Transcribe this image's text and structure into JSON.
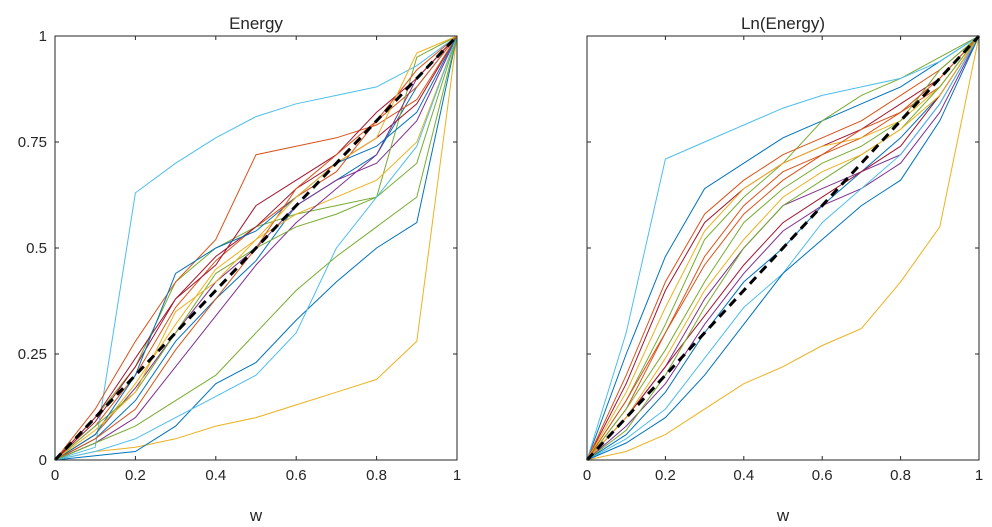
{
  "chart_data": [
    {
      "type": "line",
      "title": "Energy",
      "xlabel": "w",
      "ylabel": "",
      "xlim": [
        0,
        1
      ],
      "ylim": [
        0,
        1
      ],
      "xticks": [
        "0",
        "0.2",
        "0.4",
        "0.6",
        "0.8",
        "1"
      ],
      "yticks": [
        "0",
        "0.25",
        "0.5",
        "0.75",
        "1"
      ],
      "grid": false,
      "series": [
        {
          "color": "#0072BD",
          "x": [
            0,
            0.1,
            0.2,
            0.3,
            0.4,
            0.5,
            0.6,
            0.7,
            0.8,
            0.9,
            1
          ],
          "y": [
            0,
            0.05,
            0.14,
            0.28,
            0.38,
            0.47,
            0.6,
            0.66,
            0.72,
            0.88,
            1
          ]
        },
        {
          "color": "#D95319",
          "x": [
            0,
            0.1,
            0.2,
            0.3,
            0.4,
            0.5,
            0.6,
            0.7,
            0.8,
            0.9,
            1
          ],
          "y": [
            0,
            0.08,
            0.2,
            0.36,
            0.47,
            0.55,
            0.62,
            0.68,
            0.8,
            0.88,
            1
          ]
        },
        {
          "color": "#EDB120",
          "x": [
            0,
            0.1,
            0.2,
            0.3,
            0.4,
            0.5,
            0.6,
            0.7,
            0.8,
            0.9,
            1
          ],
          "y": [
            0,
            0.02,
            0.03,
            0.05,
            0.08,
            0.1,
            0.13,
            0.16,
            0.19,
            0.28,
            1
          ]
        },
        {
          "color": "#7E2F8E",
          "x": [
            0,
            0.1,
            0.2,
            0.3,
            0.4,
            0.5,
            0.6,
            0.7,
            0.8,
            0.9,
            1
          ],
          "y": [
            0,
            0.06,
            0.17,
            0.3,
            0.42,
            0.5,
            0.6,
            0.66,
            0.7,
            0.8,
            1
          ]
        },
        {
          "color": "#77AC30",
          "x": [
            0,
            0.1,
            0.2,
            0.3,
            0.4,
            0.5,
            0.6,
            0.7,
            0.8,
            0.9,
            1
          ],
          "y": [
            0,
            0.1,
            0.22,
            0.42,
            0.5,
            0.55,
            0.58,
            0.6,
            0.62,
            0.95,
            1
          ]
        },
        {
          "color": "#4DBEEE",
          "x": [
            0,
            0.1,
            0.2,
            0.3,
            0.4,
            0.5,
            0.6,
            0.7,
            0.8,
            0.9,
            1
          ],
          "y": [
            0,
            0.03,
            0.63,
            0.7,
            0.76,
            0.81,
            0.84,
            0.86,
            0.88,
            0.93,
            1
          ]
        },
        {
          "color": "#A2142F",
          "x": [
            0,
            0.1,
            0.2,
            0.3,
            0.4,
            0.5,
            0.6,
            0.7,
            0.8,
            0.9,
            1
          ],
          "y": [
            0,
            0.1,
            0.24,
            0.38,
            0.48,
            0.55,
            0.64,
            0.7,
            0.76,
            0.84,
            1
          ]
        },
        {
          "color": "#0072BD",
          "x": [
            0,
            0.1,
            0.2,
            0.3,
            0.4,
            0.5,
            0.6,
            0.7,
            0.8,
            0.9,
            1
          ],
          "y": [
            0,
            0.01,
            0.02,
            0.08,
            0.18,
            0.23,
            0.33,
            0.42,
            0.5,
            0.56,
            1
          ]
        },
        {
          "color": "#D95319",
          "x": [
            0,
            0.1,
            0.2,
            0.3,
            0.4,
            0.5,
            0.6,
            0.7,
            0.8,
            0.9,
            1
          ],
          "y": [
            0,
            0.12,
            0.28,
            0.42,
            0.52,
            0.72,
            0.74,
            0.76,
            0.79,
            0.85,
            1
          ]
        },
        {
          "color": "#EDB120",
          "x": [
            0,
            0.1,
            0.2,
            0.3,
            0.4,
            0.5,
            0.6,
            0.7,
            0.8,
            0.9,
            1
          ],
          "y": [
            0,
            0.06,
            0.18,
            0.32,
            0.45,
            0.52,
            0.58,
            0.62,
            0.66,
            0.75,
            1
          ]
        },
        {
          "color": "#7E2F8E",
          "x": [
            0,
            0.1,
            0.2,
            0.3,
            0.4,
            0.5,
            0.6,
            0.7,
            0.8,
            0.9,
            1
          ],
          "y": [
            0,
            0.04,
            0.1,
            0.22,
            0.34,
            0.46,
            0.56,
            0.64,
            0.72,
            0.9,
            1
          ]
        },
        {
          "color": "#77AC30",
          "x": [
            0,
            0.1,
            0.2,
            0.3,
            0.4,
            0.5,
            0.6,
            0.7,
            0.8,
            0.9,
            1
          ],
          "y": [
            0,
            0.08,
            0.16,
            0.3,
            0.44,
            0.5,
            0.55,
            0.58,
            0.62,
            0.7,
            1
          ]
        },
        {
          "color": "#4DBEEE",
          "x": [
            0,
            0.1,
            0.2,
            0.3,
            0.4,
            0.5,
            0.6,
            0.7,
            0.8,
            0.9,
            1
          ],
          "y": [
            0,
            0.02,
            0.05,
            0.1,
            0.15,
            0.2,
            0.3,
            0.5,
            0.62,
            0.74,
            1
          ]
        },
        {
          "color": "#A2142F",
          "x": [
            0,
            0.1,
            0.2,
            0.3,
            0.4,
            0.5,
            0.6,
            0.7,
            0.8,
            0.9,
            1
          ],
          "y": [
            0,
            0.09,
            0.22,
            0.38,
            0.46,
            0.6,
            0.66,
            0.72,
            0.82,
            0.9,
            1
          ]
        },
        {
          "color": "#0072BD",
          "x": [
            0,
            0.1,
            0.2,
            0.3,
            0.4,
            0.5,
            0.6,
            0.7,
            0.8,
            0.9,
            1
          ],
          "y": [
            0,
            0.06,
            0.2,
            0.44,
            0.5,
            0.54,
            0.62,
            0.7,
            0.74,
            0.82,
            1
          ]
        },
        {
          "color": "#D95319",
          "x": [
            0,
            0.1,
            0.2,
            0.3,
            0.4,
            0.5,
            0.6,
            0.7,
            0.8,
            0.9,
            1
          ],
          "y": [
            0,
            0.05,
            0.12,
            0.26,
            0.38,
            0.5,
            0.64,
            0.72,
            0.8,
            0.92,
            1
          ]
        },
        {
          "color": "#77AC30",
          "x": [
            0,
            0.1,
            0.2,
            0.3,
            0.4,
            0.5,
            0.6,
            0.7,
            0.8,
            0.9,
            1
          ],
          "y": [
            0,
            0.04,
            0.08,
            0.14,
            0.2,
            0.3,
            0.4,
            0.48,
            0.55,
            0.62,
            1
          ]
        },
        {
          "color": "#EDB120",
          "x": [
            0,
            0.1,
            0.2,
            0.3,
            0.4,
            0.5,
            0.6,
            0.7,
            0.8,
            0.9,
            1
          ],
          "y": [
            0,
            0.07,
            0.16,
            0.35,
            0.42,
            0.52,
            0.62,
            0.7,
            0.76,
            0.96,
            1
          ]
        }
      ],
      "reference_line": {
        "color": "#000000",
        "style": "dashed",
        "x": [
          0,
          1
        ],
        "y": [
          0,
          1
        ]
      }
    },
    {
      "type": "line",
      "title": "Ln(Energy)",
      "xlabel": "w",
      "ylabel": "",
      "xlim": [
        0,
        1
      ],
      "ylim": [
        0,
        1
      ],
      "xticks": [
        "0",
        "0.2",
        "0.4",
        "0.6",
        "0.8",
        "1"
      ],
      "yticks": [],
      "grid": false,
      "series": [
        {
          "color": "#0072BD",
          "x": [
            0,
            0.1,
            0.2,
            0.3,
            0.4,
            0.5,
            0.6,
            0.7,
            0.8,
            0.9,
            1
          ],
          "y": [
            0,
            0.25,
            0.48,
            0.64,
            0.7,
            0.76,
            0.8,
            0.84,
            0.88,
            0.94,
            1
          ]
        },
        {
          "color": "#D95319",
          "x": [
            0,
            0.1,
            0.2,
            0.3,
            0.4,
            0.5,
            0.6,
            0.7,
            0.8,
            0.9,
            1
          ],
          "y": [
            0,
            0.12,
            0.3,
            0.48,
            0.6,
            0.68,
            0.72,
            0.76,
            0.82,
            0.88,
            1
          ]
        },
        {
          "color": "#EDB120",
          "x": [
            0,
            0.1,
            0.2,
            0.3,
            0.4,
            0.5,
            0.6,
            0.7,
            0.8,
            0.9,
            1
          ],
          "y": [
            0,
            0.02,
            0.06,
            0.12,
            0.18,
            0.22,
            0.27,
            0.31,
            0.42,
            0.55,
            1
          ]
        },
        {
          "color": "#7E2F8E",
          "x": [
            0,
            0.1,
            0.2,
            0.3,
            0.4,
            0.5,
            0.6,
            0.7,
            0.8,
            0.9,
            1
          ],
          "y": [
            0,
            0.1,
            0.22,
            0.38,
            0.5,
            0.6,
            0.64,
            0.68,
            0.72,
            0.84,
            1
          ]
        },
        {
          "color": "#77AC30",
          "x": [
            0,
            0.1,
            0.2,
            0.3,
            0.4,
            0.5,
            0.6,
            0.7,
            0.8,
            0.9,
            1
          ],
          "y": [
            0,
            0.14,
            0.32,
            0.52,
            0.62,
            0.7,
            0.8,
            0.86,
            0.9,
            0.95,
            1
          ]
        },
        {
          "color": "#4DBEEE",
          "x": [
            0,
            0.1,
            0.2,
            0.3,
            0.4,
            0.5,
            0.6,
            0.7,
            0.8,
            0.9,
            1
          ],
          "y": [
            0,
            0.3,
            0.71,
            0.75,
            0.79,
            0.83,
            0.86,
            0.88,
            0.9,
            0.94,
            1
          ]
        },
        {
          "color": "#A2142F",
          "x": [
            0,
            0.1,
            0.2,
            0.3,
            0.4,
            0.5,
            0.6,
            0.7,
            0.8,
            0.9,
            1
          ],
          "y": [
            0,
            0.18,
            0.4,
            0.56,
            0.64,
            0.7,
            0.74,
            0.78,
            0.84,
            0.9,
            1
          ]
        },
        {
          "color": "#0072BD",
          "x": [
            0,
            0.1,
            0.2,
            0.3,
            0.4,
            0.5,
            0.6,
            0.7,
            0.8,
            0.9,
            1
          ],
          "y": [
            0,
            0.06,
            0.16,
            0.3,
            0.42,
            0.5,
            0.6,
            0.68,
            0.76,
            0.86,
            1
          ]
        },
        {
          "color": "#D95319",
          "x": [
            0,
            0.1,
            0.2,
            0.3,
            0.4,
            0.5,
            0.6,
            0.7,
            0.8,
            0.9,
            1
          ],
          "y": [
            0,
            0.2,
            0.42,
            0.58,
            0.66,
            0.72,
            0.76,
            0.8,
            0.86,
            0.92,
            1
          ]
        },
        {
          "color": "#EDB120",
          "x": [
            0,
            0.1,
            0.2,
            0.3,
            0.4,
            0.5,
            0.6,
            0.7,
            0.8,
            0.9,
            1
          ],
          "y": [
            0,
            0.16,
            0.36,
            0.54,
            0.64,
            0.7,
            0.74,
            0.76,
            0.8,
            0.88,
            1
          ]
        },
        {
          "color": "#7E2F8E",
          "x": [
            0,
            0.1,
            0.2,
            0.3,
            0.4,
            0.5,
            0.6,
            0.7,
            0.8,
            0.9,
            1
          ],
          "y": [
            0,
            0.08,
            0.18,
            0.32,
            0.44,
            0.54,
            0.6,
            0.64,
            0.7,
            0.82,
            1
          ]
        },
        {
          "color": "#77AC30",
          "x": [
            0,
            0.1,
            0.2,
            0.3,
            0.4,
            0.5,
            0.6,
            0.7,
            0.8,
            0.9,
            1
          ],
          "y": [
            0,
            0.12,
            0.26,
            0.42,
            0.56,
            0.64,
            0.7,
            0.74,
            0.8,
            0.92,
            1
          ]
        },
        {
          "color": "#4DBEEE",
          "x": [
            0,
            0.1,
            0.2,
            0.3,
            0.4,
            0.5,
            0.6,
            0.7,
            0.8,
            0.9,
            1
          ],
          "y": [
            0,
            0.05,
            0.12,
            0.24,
            0.36,
            0.44,
            0.56,
            0.64,
            0.72,
            0.84,
            1
          ]
        },
        {
          "color": "#A2142F",
          "x": [
            0,
            0.1,
            0.2,
            0.3,
            0.4,
            0.5,
            0.6,
            0.7,
            0.8,
            0.9,
            1
          ],
          "y": [
            0,
            0.1,
            0.22,
            0.34,
            0.46,
            0.56,
            0.62,
            0.68,
            0.74,
            0.86,
            1
          ]
        },
        {
          "color": "#0072BD",
          "x": [
            0,
            0.1,
            0.2,
            0.3,
            0.4,
            0.5,
            0.6,
            0.7,
            0.8,
            0.9,
            1
          ],
          "y": [
            0,
            0.04,
            0.1,
            0.2,
            0.32,
            0.44,
            0.52,
            0.6,
            0.66,
            0.8,
            1
          ]
        },
        {
          "color": "#D95319",
          "x": [
            0,
            0.1,
            0.2,
            0.3,
            0.4,
            0.5,
            0.6,
            0.7,
            0.8,
            0.9,
            1
          ],
          "y": [
            0,
            0.14,
            0.3,
            0.46,
            0.58,
            0.66,
            0.72,
            0.78,
            0.82,
            0.9,
            1
          ]
        },
        {
          "color": "#77AC30",
          "x": [
            0,
            0.1,
            0.2,
            0.3,
            0.4,
            0.5,
            0.6,
            0.7,
            0.8,
            0.9,
            1
          ],
          "y": [
            0,
            0.07,
            0.2,
            0.36,
            0.5,
            0.6,
            0.66,
            0.72,
            0.78,
            0.88,
            1
          ]
        },
        {
          "color": "#EDB120",
          "x": [
            0,
            0.1,
            0.2,
            0.3,
            0.4,
            0.5,
            0.6,
            0.7,
            0.8,
            0.9,
            1
          ],
          "y": [
            0,
            0.1,
            0.24,
            0.4,
            0.52,
            0.62,
            0.68,
            0.72,
            0.78,
            0.86,
            1
          ]
        }
      ],
      "reference_line": {
        "color": "#000000",
        "style": "dashed",
        "x": [
          0,
          1
        ],
        "y": [
          0,
          1
        ]
      }
    }
  ]
}
